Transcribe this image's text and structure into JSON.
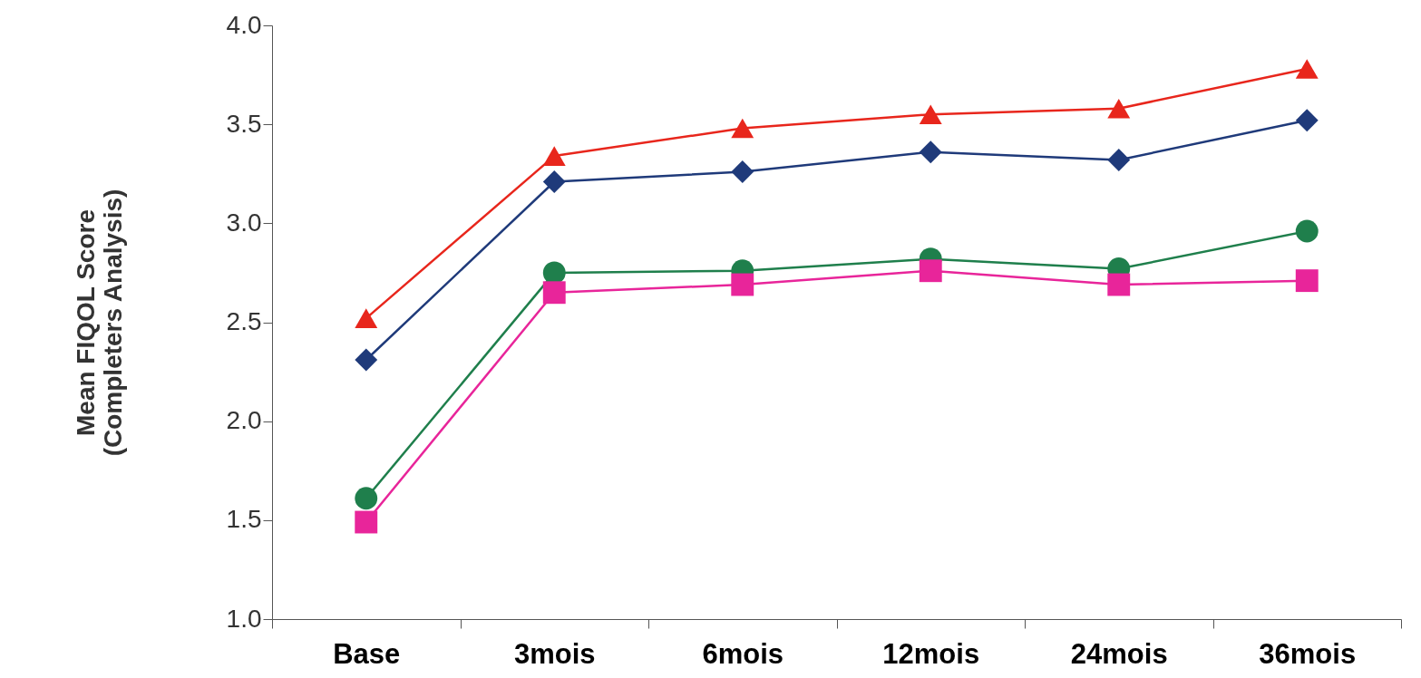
{
  "chart_data": {
    "type": "line",
    "ylabel": "Mean FIQOL Score\n(Completers Analysis)",
    "categories": [
      "Base",
      "3mois",
      "6mois",
      "12mois",
      "24mois",
      "36mois"
    ],
    "series": [
      {
        "color": "#e8261c",
        "marker": "triangle",
        "values": [
          2.52,
          3.34,
          3.48,
          3.55,
          3.58,
          3.78
        ]
      },
      {
        "color": "#1f3a7a",
        "marker": "diamond",
        "values": [
          2.31,
          3.21,
          3.26,
          3.36,
          3.32,
          3.52
        ]
      },
      {
        "color": "#1f7f4c",
        "marker": "circle",
        "values": [
          1.61,
          2.75,
          2.76,
          2.82,
          2.77,
          2.96
        ]
      },
      {
        "color": "#e8259a",
        "marker": "square",
        "values": [
          1.49,
          2.65,
          2.69,
          2.76,
          2.69,
          2.71
        ]
      }
    ],
    "ylim": [
      1,
      4
    ],
    "yticks": [
      {
        "value": 1,
        "label": "1.0"
      },
      {
        "value": 1.5,
        "label": "1.5"
      },
      {
        "value": 2,
        "label": "2.0"
      },
      {
        "value": 2.5,
        "label": "2.5"
      },
      {
        "value": 3,
        "label": "3.0"
      },
      {
        "value": 3.5,
        "label": "3.5"
      },
      {
        "value": 4,
        "label": "4.0"
      }
    ],
    "grid": false,
    "line_style": "solid"
  }
}
